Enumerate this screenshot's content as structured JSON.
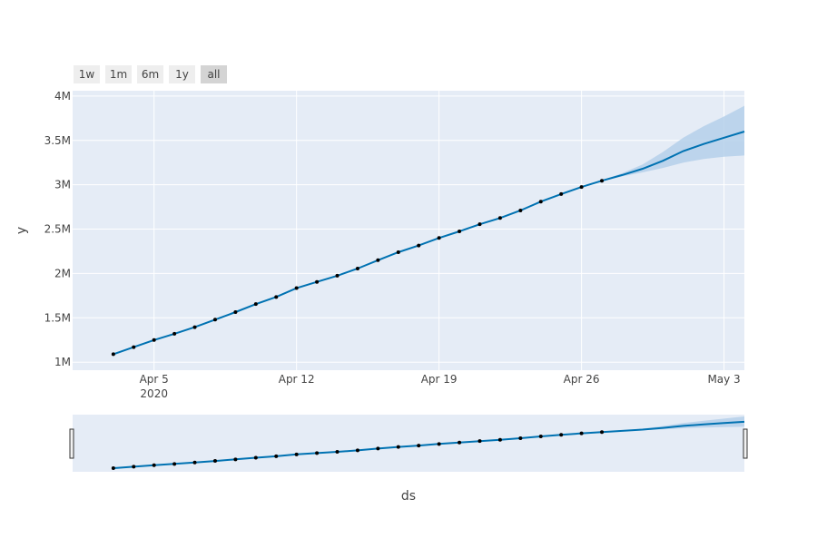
{
  "chart_data": {
    "type": "line",
    "title": "",
    "xlabel": "ds",
    "ylabel": "y",
    "x_tick_labels": [
      "Apr 5\n2020",
      "Apr 12",
      "Apr 19",
      "Apr 26",
      "May 3"
    ],
    "x_tick_dates": [
      "2020-04-05",
      "2020-04-12",
      "2020-04-19",
      "2020-04-26",
      "2020-05-03"
    ],
    "y_tick_labels": [
      "1M",
      "1.5M",
      "2M",
      "2.5M",
      "3M",
      "3.5M",
      "4M"
    ],
    "y_tick_values": [
      1000000,
      1500000,
      2000000,
      2500000,
      3000000,
      3500000,
      4000000
    ],
    "xlim": [
      "2020-04-01",
      "2020-05-04"
    ],
    "ylim": [
      910000,
      4060000
    ],
    "grid": true,
    "range_selector": {
      "buttons": [
        "1w",
        "1m",
        "6m",
        "1y",
        "all"
      ],
      "active": "all"
    },
    "rangeslider": true,
    "series": [
      {
        "role": "actual",
        "x": [
          "2020-04-03",
          "2020-04-04",
          "2020-04-05",
          "2020-04-06",
          "2020-04-07",
          "2020-04-08",
          "2020-04-09",
          "2020-04-10",
          "2020-04-11",
          "2020-04-12",
          "2020-04-13",
          "2020-04-14",
          "2020-04-15",
          "2020-04-16",
          "2020-04-17",
          "2020-04-18",
          "2020-04-19",
          "2020-04-20",
          "2020-04-21",
          "2020-04-22",
          "2020-04-23",
          "2020-04-24",
          "2020-04-25",
          "2020-04-26",
          "2020-04-27"
        ],
        "values": [
          1090000,
          1170000,
          1250000,
          1320000,
          1395000,
          1480000,
          1565000,
          1655000,
          1735000,
          1835000,
          1905000,
          1975000,
          2055000,
          2150000,
          2240000,
          2315000,
          2400000,
          2475000,
          2555000,
          2625000,
          2710000,
          2810000,
          2895000,
          2975000,
          3045000
        ]
      },
      {
        "role": "forecast",
        "x": [
          "2020-04-03",
          "2020-04-04",
          "2020-04-05",
          "2020-04-06",
          "2020-04-07",
          "2020-04-08",
          "2020-04-09",
          "2020-04-10",
          "2020-04-11",
          "2020-04-12",
          "2020-04-13",
          "2020-04-14",
          "2020-04-15",
          "2020-04-16",
          "2020-04-17",
          "2020-04-18",
          "2020-04-19",
          "2020-04-20",
          "2020-04-21",
          "2020-04-22",
          "2020-04-23",
          "2020-04-24",
          "2020-04-25",
          "2020-04-26",
          "2020-04-27",
          "2020-04-28",
          "2020-04-29",
          "2020-04-30",
          "2020-05-01",
          "2020-05-02",
          "2020-05-03",
          "2020-05-04"
        ],
        "values": [
          1090000,
          1170000,
          1250000,
          1320000,
          1395000,
          1480000,
          1565000,
          1655000,
          1735000,
          1835000,
          1905000,
          1975000,
          2055000,
          2150000,
          2240000,
          2315000,
          2400000,
          2475000,
          2555000,
          2625000,
          2710000,
          2810000,
          2895000,
          2975000,
          3045000,
          3110000,
          3180000,
          3270000,
          3380000,
          3460000,
          3530000,
          3600000
        ]
      },
      {
        "role": "uncertainty",
        "x": [
          "2020-04-27",
          "2020-04-28",
          "2020-04-29",
          "2020-04-30",
          "2020-05-01",
          "2020-05-02",
          "2020-05-03",
          "2020-05-04"
        ],
        "lower": [
          3040000,
          3095000,
          3140000,
          3190000,
          3250000,
          3290000,
          3315000,
          3330000
        ],
        "upper": [
          3050000,
          3130000,
          3230000,
          3370000,
          3530000,
          3660000,
          3770000,
          3890000
        ]
      }
    ]
  },
  "colors": {
    "line": "#0072B2",
    "band": "#B5D0EA",
    "marker": "#000000",
    "plot_bg": "#E5ECF6",
    "grid": "#ffffff",
    "text": "#444444",
    "button_bg": "#eeeeee",
    "button_active_bg": "#d4d4d4"
  }
}
